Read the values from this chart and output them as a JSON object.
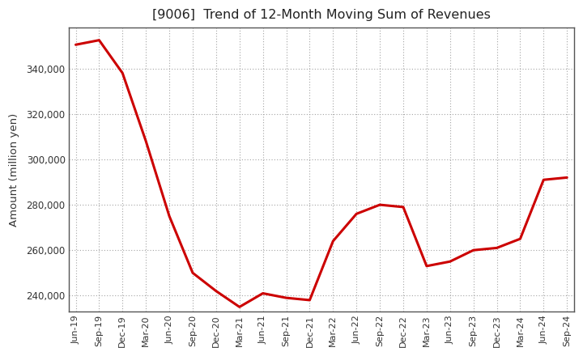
{
  "title": "[9006]  Trend of 12-Month Moving Sum of Revenues",
  "ylabel": "Amount (million yen)",
  "line_color": "#cc0000",
  "background_color": "#ffffff",
  "plot_bg_color": "#ffffff",
  "grid_color": "#999999",
  "ylim": [
    233000,
    358000
  ],
  "yticks": [
    240000,
    260000,
    280000,
    300000,
    320000,
    340000
  ],
  "x_labels": [
    "Jun-19",
    "Sep-19",
    "Dec-19",
    "Mar-20",
    "Jun-20",
    "Sep-20",
    "Dec-20",
    "Mar-21",
    "Jun-21",
    "Sep-21",
    "Dec-21",
    "Mar-22",
    "Jun-22",
    "Sep-22",
    "Dec-22",
    "Mar-23",
    "Jun-23",
    "Sep-23",
    "Dec-23",
    "Mar-24",
    "Jun-24",
    "Sep-24"
  ],
  "values": [
    350500,
    352500,
    338000,
    308000,
    275000,
    250000,
    242000,
    235000,
    241000,
    239000,
    238000,
    264000,
    276000,
    280000,
    279000,
    253000,
    255000,
    260000,
    261000,
    265000,
    291000,
    292000
  ]
}
